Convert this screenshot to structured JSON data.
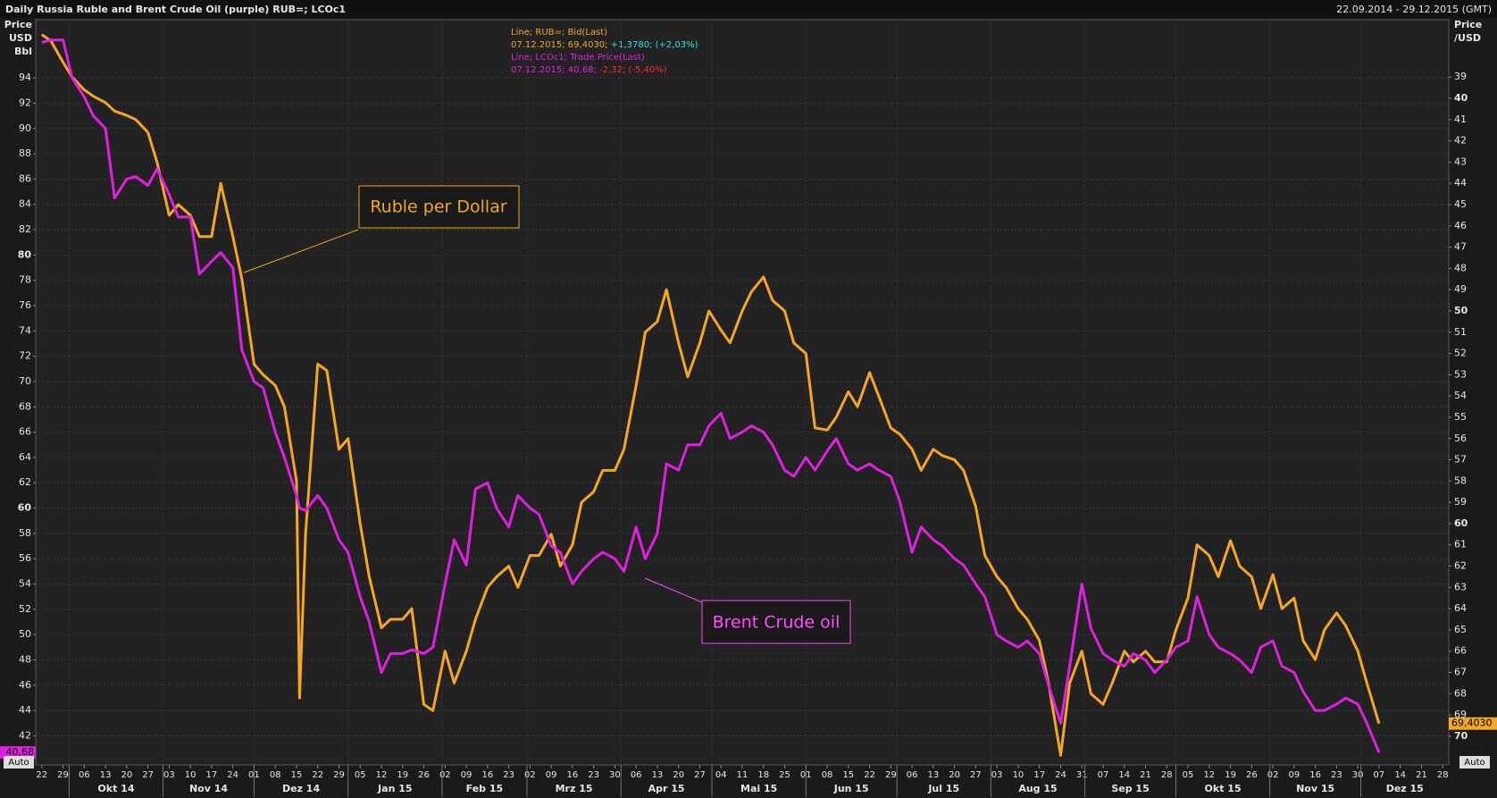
{
  "chart_data": {
    "type": "line",
    "title": "Daily Russia Ruble and Brent Crude Oil (purple) RUB=; LCOc1",
    "date_range": "22.09.2014 - 29.12.2015 (GMT)",
    "ylabel": [
      "Price",
      "USD",
      "Bbl"
    ],
    "y2label": [
      "Price",
      "/USD"
    ],
    "y2_inverted": true,
    "grid": true,
    "auto_label": "Auto",
    "legend": [
      {
        "header": "Line; RUB=; Bid(Last)",
        "value": "07.12.2015; 69,4030;",
        "change": "+1,3780; (+2,03%)",
        "color": "#f5a623",
        "change_color": "#33e0e0"
      },
      {
        "header": "Line; LCOc1; Trade Price(Last)",
        "value": "07.12.2015; 40,68;",
        "change": "-2,32; (-5,40%)",
        "color": "#e020e0",
        "change_color": "#ff2a2a"
      }
    ],
    "annotations": [
      {
        "text": "Ruble per Dollar",
        "color": "#f5a623"
      },
      {
        "text": "Brent Crude oil",
        "color": "#ff4dff"
      }
    ],
    "xlim": [
      "2014-09-20",
      "2015-12-30"
    ],
    "ylim": [
      39.7,
      98.6
    ],
    "y2lim": [
      36.3,
      71.35
    ],
    "yticks": [
      42,
      44,
      46,
      48,
      50,
      52,
      54,
      56,
      58,
      60,
      62,
      64,
      66,
      68,
      70,
      72,
      74,
      76,
      78,
      80,
      82,
      84,
      86,
      88,
      90,
      92,
      94
    ],
    "y2ticks": [
      39,
      40,
      41,
      42,
      43,
      44,
      45,
      46,
      47,
      48,
      49,
      50,
      51,
      52,
      53,
      54,
      55,
      56,
      57,
      58,
      59,
      60,
      61,
      62,
      63,
      64,
      65,
      66,
      67,
      68,
      69,
      70
    ],
    "xticks": [
      {
        "value": "2014-09-22",
        "label": "22"
      },
      {
        "value": "2014-09-29",
        "label": "29"
      },
      {
        "value": "2014-10-06",
        "label": "06"
      },
      {
        "value": "2014-10-13",
        "label": "13"
      },
      {
        "value": "2014-10-20",
        "label": "20"
      },
      {
        "value": "2014-10-27",
        "label": "27"
      },
      {
        "value": "2014-11-03",
        "label": "03"
      },
      {
        "value": "2014-11-10",
        "label": "10"
      },
      {
        "value": "2014-11-17",
        "label": "17"
      },
      {
        "value": "2014-11-24",
        "label": "24"
      },
      {
        "value": "2014-12-01",
        "label": "01"
      },
      {
        "value": "2014-12-08",
        "label": "08"
      },
      {
        "value": "2014-12-15",
        "label": "15"
      },
      {
        "value": "2014-12-22",
        "label": "22"
      },
      {
        "value": "2014-12-29",
        "label": "29"
      },
      {
        "value": "2015-01-05",
        "label": "05"
      },
      {
        "value": "2015-01-12",
        "label": "12"
      },
      {
        "value": "2015-01-19",
        "label": "19"
      },
      {
        "value": "2015-01-26",
        "label": "26"
      },
      {
        "value": "2015-02-02",
        "label": "02"
      },
      {
        "value": "2015-02-09",
        "label": "09"
      },
      {
        "value": "2015-02-16",
        "label": "16"
      },
      {
        "value": "2015-02-23",
        "label": "23"
      },
      {
        "value": "2015-03-02",
        "label": "02"
      },
      {
        "value": "2015-03-09",
        "label": "09"
      },
      {
        "value": "2015-03-16",
        "label": "16"
      },
      {
        "value": "2015-03-23",
        "label": "23"
      },
      {
        "value": "2015-03-30",
        "label": "30"
      },
      {
        "value": "2015-04-06",
        "label": "06"
      },
      {
        "value": "2015-04-13",
        "label": "13"
      },
      {
        "value": "2015-04-20",
        "label": "20"
      },
      {
        "value": "2015-04-27",
        "label": "27"
      },
      {
        "value": "2015-05-04",
        "label": "04"
      },
      {
        "value": "2015-05-11",
        "label": "11"
      },
      {
        "value": "2015-05-18",
        "label": "18"
      },
      {
        "value": "2015-05-25",
        "label": "25"
      },
      {
        "value": "2015-06-01",
        "label": "01"
      },
      {
        "value": "2015-06-08",
        "label": "08"
      },
      {
        "value": "2015-06-15",
        "label": "15"
      },
      {
        "value": "2015-06-22",
        "label": "22"
      },
      {
        "value": "2015-06-29",
        "label": "29"
      },
      {
        "value": "2015-07-06",
        "label": "06"
      },
      {
        "value": "2015-07-13",
        "label": "13"
      },
      {
        "value": "2015-07-20",
        "label": "20"
      },
      {
        "value": "2015-07-27",
        "label": "27"
      },
      {
        "value": "2015-08-03",
        "label": "03"
      },
      {
        "value": "2015-08-10",
        "label": "10"
      },
      {
        "value": "2015-08-17",
        "label": "17"
      },
      {
        "value": "2015-08-24",
        "label": "24"
      },
      {
        "value": "2015-08-31",
        "label": "31"
      },
      {
        "value": "2015-09-07",
        "label": "07"
      },
      {
        "value": "2015-09-14",
        "label": "14"
      },
      {
        "value": "2015-09-21",
        "label": "21"
      },
      {
        "value": "2015-09-28",
        "label": "28"
      },
      {
        "value": "2015-10-05",
        "label": "05"
      },
      {
        "value": "2015-10-12",
        "label": "12"
      },
      {
        "value": "2015-10-19",
        "label": "19"
      },
      {
        "value": "2015-10-26",
        "label": "26"
      },
      {
        "value": "2015-11-02",
        "label": "02"
      },
      {
        "value": "2015-11-09",
        "label": "09"
      },
      {
        "value": "2015-11-16",
        "label": "16"
      },
      {
        "value": "2015-11-23",
        "label": "23"
      },
      {
        "value": "2015-11-30",
        "label": "30"
      },
      {
        "value": "2015-12-07",
        "label": "07"
      },
      {
        "value": "2015-12-14",
        "label": "14"
      },
      {
        "value": "2015-12-21",
        "label": "21"
      },
      {
        "value": "2015-12-28",
        "label": "28"
      }
    ],
    "month_ticks": [
      {
        "value": "2014-10-01",
        "label": "Okt 14"
      },
      {
        "value": "2014-11-01",
        "label": "Nov 14"
      },
      {
        "value": "2014-12-01",
        "label": "Dez 14"
      },
      {
        "value": "2015-01-01",
        "label": "Jan 15"
      },
      {
        "value": "2015-02-01",
        "label": "Feb 15"
      },
      {
        "value": "2015-03-01",
        "label": "Mrz 15"
      },
      {
        "value": "2015-04-01",
        "label": "Apr 15"
      },
      {
        "value": "2015-05-01",
        "label": "Mai 15"
      },
      {
        "value": "2015-06-01",
        "label": "Jun 15"
      },
      {
        "value": "2015-07-01",
        "label": "Jul 15"
      },
      {
        "value": "2015-08-01",
        "label": "Aug 15"
      },
      {
        "value": "2015-09-01",
        "label": "Sep 15"
      },
      {
        "value": "2015-10-01",
        "label": "Okt 15"
      },
      {
        "value": "2015-11-01",
        "label": "Nov 15"
      },
      {
        "value": "2015-12-01",
        "label": "Dez 15"
      }
    ],
    "x": [
      "2014-09-22",
      "2014-09-25",
      "2014-09-29",
      "2014-10-02",
      "2014-10-06",
      "2014-10-09",
      "2014-10-13",
      "2014-10-16",
      "2014-10-20",
      "2014-10-23",
      "2014-10-27",
      "2014-10-30",
      "2014-11-03",
      "2014-11-06",
      "2014-11-10",
      "2014-11-13",
      "2014-11-17",
      "2014-11-20",
      "2014-11-24",
      "2014-11-27",
      "2014-12-01",
      "2014-12-04",
      "2014-12-08",
      "2014-12-11",
      "2014-12-15",
      "2014-12-16",
      "2014-12-18",
      "2014-12-22",
      "2014-12-25",
      "2014-12-29",
      "2015-01-01",
      "2015-01-05",
      "2015-01-08",
      "2015-01-12",
      "2015-01-15",
      "2015-01-19",
      "2015-01-22",
      "2015-01-26",
      "2015-01-29",
      "2015-02-02",
      "2015-02-05",
      "2015-02-09",
      "2015-02-12",
      "2015-02-16",
      "2015-02-19",
      "2015-02-23",
      "2015-02-26",
      "2015-03-02",
      "2015-03-05",
      "2015-03-09",
      "2015-03-12",
      "2015-03-16",
      "2015-03-19",
      "2015-03-23",
      "2015-03-26",
      "2015-03-30",
      "2015-04-02",
      "2015-04-06",
      "2015-04-09",
      "2015-04-13",
      "2015-04-16",
      "2015-04-20",
      "2015-04-23",
      "2015-04-27",
      "2015-04-30",
      "2015-05-04",
      "2015-05-07",
      "2015-05-11",
      "2015-05-14",
      "2015-05-18",
      "2015-05-21",
      "2015-05-25",
      "2015-05-28",
      "2015-06-01",
      "2015-06-04",
      "2015-06-08",
      "2015-06-11",
      "2015-06-15",
      "2015-06-18",
      "2015-06-22",
      "2015-06-25",
      "2015-06-29",
      "2015-07-02",
      "2015-07-06",
      "2015-07-09",
      "2015-07-13",
      "2015-07-16",
      "2015-07-20",
      "2015-07-23",
      "2015-07-27",
      "2015-07-30",
      "2015-08-03",
      "2015-08-06",
      "2015-08-10",
      "2015-08-13",
      "2015-08-17",
      "2015-08-20",
      "2015-08-24",
      "2015-08-27",
      "2015-08-31",
      "2015-09-03",
      "2015-09-07",
      "2015-09-10",
      "2015-09-14",
      "2015-09-17",
      "2015-09-21",
      "2015-09-24",
      "2015-09-28",
      "2015-10-01",
      "2015-10-05",
      "2015-10-08",
      "2015-10-12",
      "2015-10-15",
      "2015-10-19",
      "2015-10-22",
      "2015-10-26",
      "2015-10-29",
      "2015-11-02",
      "2015-11-05",
      "2015-11-09",
      "2015-11-12",
      "2015-11-16",
      "2015-11-19",
      "2015-11-23",
      "2015-11-26",
      "2015-11-30",
      "2015-12-03",
      "2015-12-07"
    ],
    "series": [
      {
        "name": "RUB=",
        "color": "#f5a623",
        "axis": "y2",
        "last_label": "69,4030",
        "values": [
          37.0,
          37.3,
          38.3,
          39.0,
          39.6,
          39.9,
          40.2,
          40.6,
          40.8,
          41.0,
          41.6,
          43.0,
          45.5,
          45.0,
          45.5,
          46.5,
          46.5,
          44.0,
          46.5,
          48.5,
          52.5,
          53.0,
          53.5,
          54.5,
          58.0,
          68.2,
          60.5,
          52.5,
          52.8,
          56.5,
          56.0,
          60.0,
          62.5,
          64.9,
          64.5,
          64.5,
          64.0,
          68.5,
          68.8,
          66.0,
          67.5,
          66.0,
          64.5,
          63.0,
          62.5,
          62.0,
          63.0,
          61.5,
          61.5,
          60.5,
          62.0,
          61.0,
          59.0,
          58.5,
          57.5,
          57.5,
          56.5,
          53.5,
          51.0,
          50.5,
          49.0,
          51.5,
          53.1,
          51.5,
          50.0,
          50.9,
          51.5,
          50.0,
          49.1,
          48.4,
          49.5,
          50.0,
          51.5,
          52.0,
          55.5,
          55.6,
          55.0,
          53.8,
          54.5,
          52.9,
          54.0,
          55.5,
          55.8,
          56.5,
          57.5,
          56.5,
          56.8,
          57.0,
          57.5,
          59.2,
          61.5,
          62.5,
          63.0,
          64.0,
          64.5,
          65.5,
          67.5,
          70.9,
          67.5,
          66.0,
          68.0,
          68.5,
          67.5,
          66.0,
          66.5,
          66.0,
          66.5,
          66.5,
          65.0,
          63.5,
          61.0,
          61.5,
          62.5,
          60.8,
          62.0,
          62.5,
          64.0,
          62.4,
          64.0,
          63.5,
          65.5,
          66.4,
          65.0,
          64.2,
          64.8,
          66.0,
          67.5,
          69.403
        ]
      },
      {
        "name": "LCOc1",
        "color": "#e020e0",
        "last_label": "40,68",
        "values": [
          96.8,
          97.0,
          97.0,
          94.0,
          92.5,
          91.0,
          90.0,
          84.5,
          86.0,
          86.2,
          85.5,
          86.8,
          84.8,
          83.0,
          83.0,
          78.5,
          79.5,
          80.2,
          79.0,
          72.5,
          70.0,
          69.5,
          66.0,
          64.0,
          61.0,
          60.0,
          59.8,
          61.0,
          60.0,
          57.5,
          56.5,
          53.0,
          51.0,
          47.0,
          48.5,
          48.5,
          48.8,
          48.5,
          49.0,
          54.0,
          57.5,
          55.5,
          61.5,
          62.0,
          60.0,
          58.5,
          61.0,
          60.0,
          59.5,
          57.0,
          56.5,
          54.0,
          55.0,
          56.0,
          56.5,
          56.0,
          55.0,
          58.5,
          56.0,
          58.0,
          63.5,
          63.0,
          65.0,
          65.0,
          66.5,
          67.5,
          65.5,
          66.0,
          66.5,
          66.0,
          65.0,
          63.0,
          62.5,
          64.0,
          63.0,
          64.5,
          65.5,
          63.5,
          63.0,
          63.5,
          63.0,
          62.5,
          60.5,
          56.5,
          58.5,
          57.5,
          57.0,
          56.0,
          55.5,
          54.0,
          53.0,
          50.0,
          49.5,
          49.0,
          49.5,
          48.5,
          46.0,
          43.0,
          47.5,
          54.0,
          50.5,
          48.5,
          48.0,
          47.5,
          48.5,
          48.0,
          47.0,
          48.0,
          49.0,
          49.5,
          53.0,
          50.0,
          49.0,
          48.5,
          48.0,
          47.0,
          49.0,
          49.5,
          47.5,
          47.0,
          45.5,
          44.0,
          44.0,
          44.5,
          45.0,
          44.5,
          43.0,
          40.68
        ]
      }
    ]
  }
}
